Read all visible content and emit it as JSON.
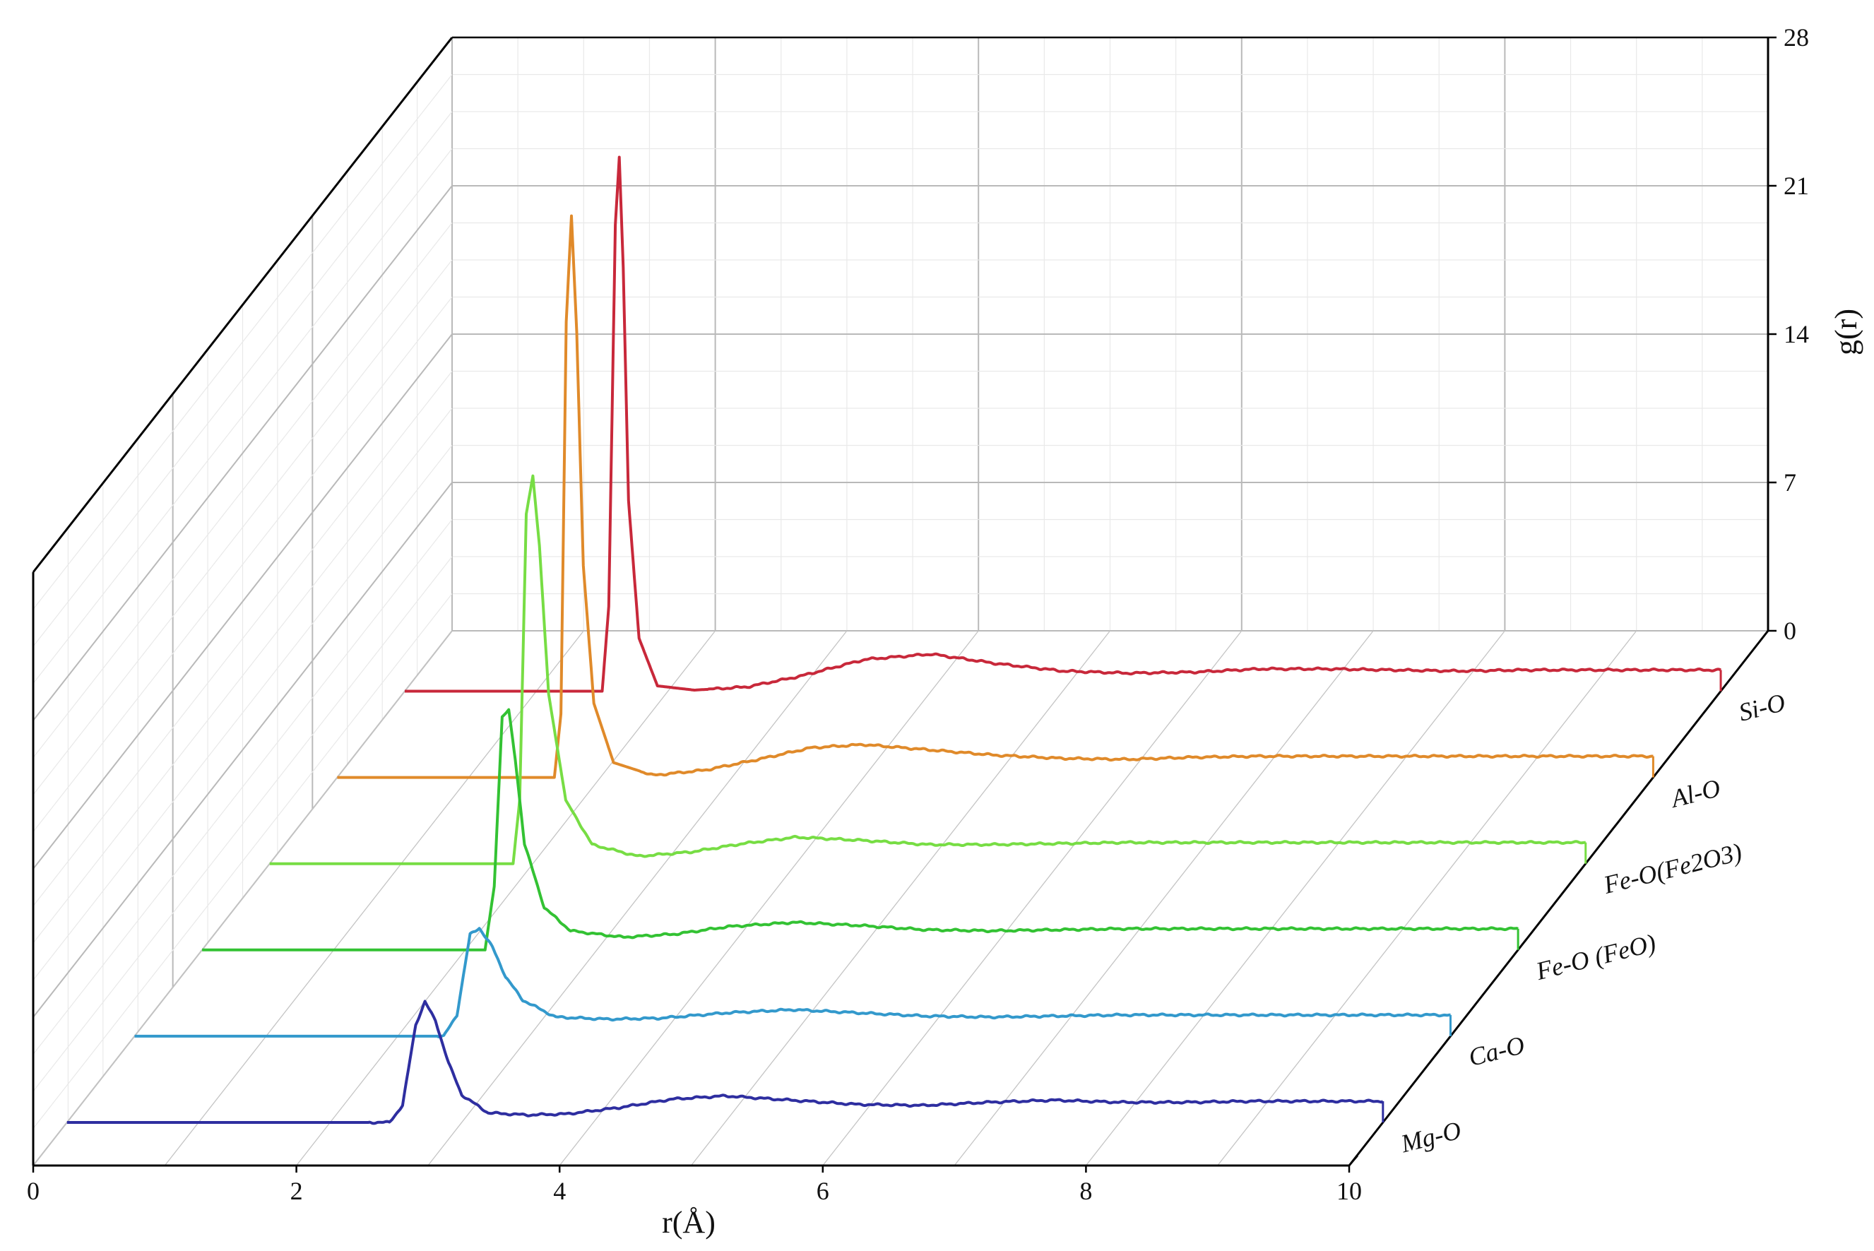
{
  "chart_data": {
    "type": "line",
    "subtype": "3d-waterfall",
    "xlabel": "r(Å)",
    "ylabel": "g(r)",
    "xlim": [
      0,
      10
    ],
    "ylim": [
      0,
      28
    ],
    "xticks": [
      "0",
      "2",
      "4",
      "6",
      "8",
      "10"
    ],
    "yticks": [
      "0",
      "7",
      "14",
      "21",
      "28"
    ],
    "series": [
      {
        "name": "Mg-O",
        "color": "#2e2ea0",
        "x": [
          0,
          2.45,
          2.55,
          2.65,
          2.72,
          2.8,
          2.9,
          3.0,
          3.2,
          3.5,
          3.8,
          4.2,
          4.6,
          5.0,
          5.5,
          6.0,
          6.5,
          7.0,
          7.5,
          8.0,
          8.5,
          9.0,
          9.5,
          10
        ],
        "y": [
          0,
          0,
          0.8,
          4.6,
          5.7,
          4.8,
          2.8,
          1.3,
          0.45,
          0.35,
          0.4,
          0.7,
          1.1,
          1.25,
          1.05,
          0.85,
          0.8,
          0.95,
          1.05,
          0.95,
          0.95,
          1.0,
          1.0,
          1.0
        ]
      },
      {
        "name": "Ca-O",
        "color": "#3399cc",
        "x": [
          0,
          2.35,
          2.45,
          2.55,
          2.62,
          2.72,
          2.82,
          2.95,
          3.2,
          3.6,
          4.0,
          4.5,
          5.0,
          5.5,
          6.0,
          6.5,
          7.0,
          7.5,
          8.0,
          8.5,
          9.0,
          9.5,
          10
        ],
        "y": [
          0,
          0,
          1.0,
          4.8,
          5.1,
          4.2,
          2.8,
          1.7,
          0.9,
          0.8,
          0.85,
          1.1,
          1.25,
          1.1,
          0.95,
          0.9,
          0.95,
          1.0,
          1.0,
          1.0,
          1.0,
          1.0,
          1.0
        ]
      },
      {
        "name": "Fe-O (FeO)",
        "color": "#33c233",
        "x": [
          0,
          2.15,
          2.22,
          2.28,
          2.33,
          2.38,
          2.45,
          2.6,
          2.8,
          3.2,
          3.6,
          4.0,
          4.5,
          5.0,
          5.5,
          6.0,
          6.5,
          7.0,
          7.5,
          8.0,
          8.5,
          9.0,
          9.5,
          10
        ],
        "y": [
          0,
          0,
          3.0,
          11.0,
          11.3,
          9.0,
          5.0,
          2.0,
          0.9,
          0.6,
          0.75,
          1.1,
          1.3,
          1.15,
          0.95,
          0.9,
          0.95,
          1.0,
          1.0,
          1.0,
          1.0,
          1.0,
          1.0,
          1.0
        ]
      },
      {
        "name": "Fe-O(Fe2O3)",
        "color": "#77dd44",
        "x": [
          0,
          1.85,
          1.9,
          1.95,
          2.0,
          2.05,
          2.12,
          2.25,
          2.45,
          2.8,
          3.2,
          3.6,
          4.0,
          4.5,
          5.0,
          5.5,
          6.0,
          6.5,
          7.0,
          7.5,
          8.0,
          8.5,
          9.0,
          9.5,
          10
        ],
        "y": [
          0,
          0,
          3.0,
          16.5,
          18.3,
          15.0,
          8.0,
          3.0,
          0.9,
          0.35,
          0.55,
          0.95,
          1.25,
          1.1,
          0.9,
          0.9,
          0.95,
          1.0,
          1.0,
          1.0,
          1.0,
          1.0,
          1.0,
          1.0,
          1.0
        ]
      },
      {
        "name": "Al-O",
        "color": "#e08a2a",
        "x": [
          0,
          1.65,
          1.7,
          1.74,
          1.78,
          1.82,
          1.87,
          1.95,
          2.1,
          2.4,
          2.8,
          3.2,
          3.6,
          4.0,
          4.5,
          5.0,
          5.5,
          6.0,
          6.5,
          7.0,
          7.5,
          8.0,
          8.5,
          9.0,
          9.5,
          10
        ],
        "y": [
          0,
          0,
          3.0,
          21.5,
          26.5,
          21.0,
          10.0,
          3.5,
          0.7,
          0.1,
          0.35,
          0.85,
          1.4,
          1.55,
          1.3,
          1.05,
          0.9,
          0.85,
          0.95,
          1.0,
          1.0,
          1.0,
          1.0,
          1.0,
          1.0,
          1.0
        ]
      },
      {
        "name": "Si-O",
        "color": "#c8283a",
        "x": [
          0,
          1.5,
          1.55,
          1.6,
          1.63,
          1.66,
          1.7,
          1.78,
          1.92,
          2.2,
          2.6,
          3.0,
          3.5,
          4.0,
          4.5,
          5.0,
          5.5,
          6.0,
          6.5,
          7.0,
          7.5,
          8.0,
          8.5,
          9.0,
          9.5,
          10
        ],
        "y": [
          0,
          0,
          4.0,
          22.0,
          25.2,
          20.0,
          9.0,
          2.5,
          0.25,
          0.05,
          0.2,
          0.7,
          1.5,
          1.75,
          1.3,
          0.95,
          0.85,
          0.9,
          1.05,
          1.05,
          1.0,
          0.95,
          1.0,
          1.0,
          1.0,
          1.0
        ]
      }
    ]
  }
}
